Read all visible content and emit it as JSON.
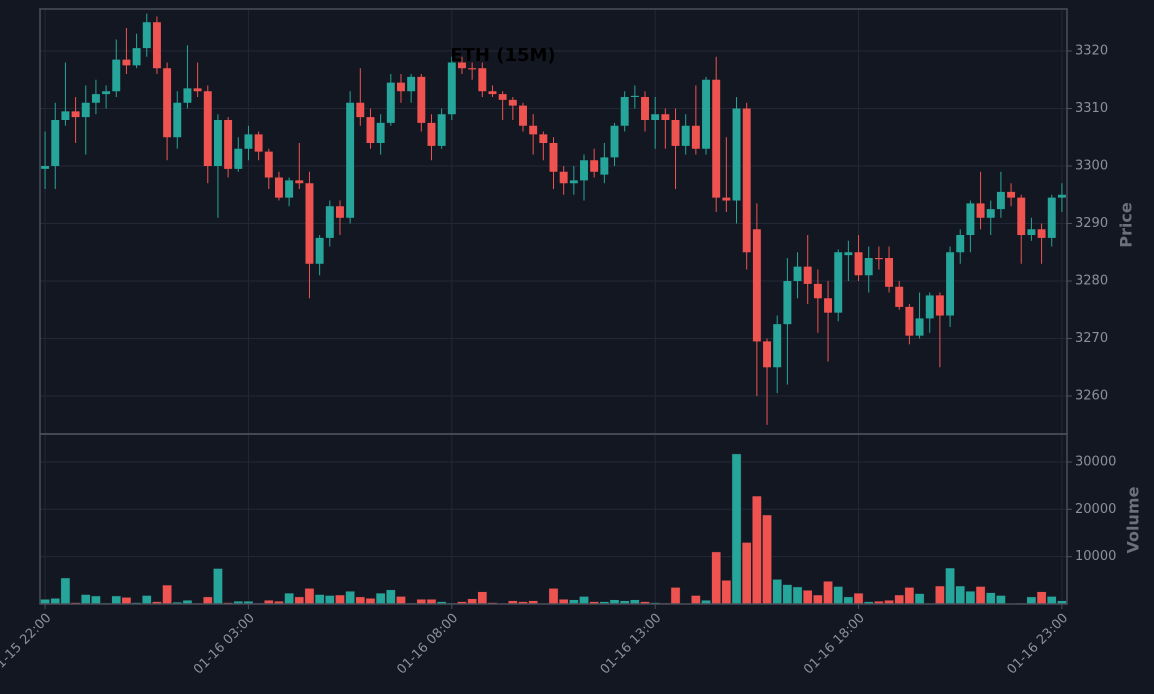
{
  "chart_data": {
    "type": "candlestick",
    "title": "ETH (15M)",
    "ylabel": "Price",
    "volume_label": "Volume",
    "up_color": "#26a69a",
    "down_color": "#ef5350",
    "grid": true,
    "categories": [
      "01-15 22:00",
      null,
      null,
      null,
      null,
      null,
      null,
      null,
      null,
      null,
      null,
      null,
      null,
      null,
      null,
      null,
      null,
      null,
      null,
      null,
      "01-16 03:00",
      null,
      null,
      null,
      null,
      null,
      null,
      null,
      null,
      null,
      null,
      null,
      null,
      null,
      null,
      null,
      null,
      null,
      null,
      null,
      "01-16 08:00",
      null,
      null,
      null,
      null,
      null,
      null,
      null,
      null,
      null,
      null,
      null,
      null,
      null,
      null,
      null,
      null,
      null,
      null,
      null,
      "01-16 13:00",
      null,
      null,
      null,
      null,
      null,
      null,
      null,
      null,
      null,
      null,
      null,
      null,
      null,
      null,
      null,
      null,
      null,
      null,
      null,
      "01-16 18:00",
      null,
      null,
      null,
      null,
      null,
      null,
      null,
      null,
      null,
      null,
      null,
      null,
      null,
      null,
      null,
      null,
      null,
      null,
      null,
      "01-16 23:00"
    ],
    "open": [
      3299.5,
      3300,
      3308,
      3309.5,
      3308.5,
      3311,
      3312.5,
      3313,
      3318.5,
      3317.5,
      3320.5,
      3325,
      3317,
      3305,
      3311,
      3313.5,
      3313,
      3300,
      3308,
      3299.5,
      3303,
      3305.5,
      3302.5,
      3298,
      3294.5,
      3297.5,
      3297,
      3283,
      3287.5,
      3293,
      3291,
      3311,
      3308.5,
      3304,
      3307.5,
      3314.5,
      3313,
      3315.5,
      3307.5,
      3303.5,
      3309,
      3318,
      3317,
      3317,
      3313,
      3312.5,
      3311.5,
      3310.5,
      3307,
      3305.5,
      3304,
      3299,
      3297,
      3297.5,
      3301,
      3298.5,
      3301.5,
      3307,
      3312,
      3312,
      3308,
      3309,
      3308,
      3303.5,
      3307,
      3303,
      3315,
      3294.5,
      3294,
      3310,
      3289,
      3269.5,
      3265,
      3272.5,
      3280,
      3282.5,
      3279.5,
      3277,
      3274.5,
      3284.5,
      3285,
      3281,
      3284,
      3284,
      3279,
      3275.5,
      3270.5,
      3273.5,
      3277.5,
      3274,
      3285,
      3288,
      3293.5,
      3291,
      3292.5,
      3295.5,
      3294.5,
      3288,
      3289,
      3287.5,
      3294.5
    ],
    "high": [
      3306,
      3311,
      3318,
      3312,
      3314,
      3315,
      3314,
      3322,
      3324,
      3323,
      3326.5,
      3326,
      3318,
      3313,
      3321,
      3318,
      3314,
      3309,
      3308.5,
      3305,
      3307,
      3306,
      3303,
      3299,
      3298,
      3304,
      3299,
      3288,
      3294,
      3294,
      3313,
      3317,
      3310,
      3309,
      3316,
      3316,
      3316,
      3316,
      3309,
      3310,
      3319,
      3319,
      3318,
      3318,
      3314,
      3313,
      3312,
      3311,
      3309,
      3306,
      3305,
      3300,
      3300,
      3302,
      3303,
      3304,
      3307.5,
      3313,
      3314,
      3313,
      3312,
      3310,
      3310,
      3309,
      3314,
      3315.5,
      3319,
      3305,
      3312,
      3311,
      3293.5,
      3270,
      3274,
      3284,
      3285,
      3288,
      3282,
      3280,
      3285.5,
      3287,
      3288,
      3286,
      3286,
      3286,
      3280,
      3276,
      3278,
      3278,
      3278,
      3286,
      3289,
      3294,
      3299,
      3294,
      3299,
      3297,
      3295,
      3291,
      3290,
      3295,
      3297
    ],
    "low": [
      3296,
      3296,
      3307,
      3304,
      3302,
      3309,
      3310,
      3312,
      3316,
      3317,
      3319,
      3316,
      3301,
      3303,
      3310,
      3312,
      3297,
      3291,
      3298,
      3299,
      3301,
      3301,
      3296,
      3294,
      3293,
      3296,
      3277,
      3281,
      3286,
      3288,
      3290,
      3307,
      3303,
      3302,
      3307,
      3311,
      3311,
      3306,
      3301,
      3303,
      3308,
      3316,
      3315,
      3312,
      3312,
      3308,
      3308,
      3306,
      3302,
      3301,
      3296,
      3295,
      3295,
      3294,
      3298,
      3297,
      3300,
      3306,
      3310,
      3306,
      3303,
      3303,
      3296,
      3302,
      3302,
      3302,
      3292,
      3292,
      3290,
      3282,
      3260,
      3255,
      3260.5,
      3262,
      3277,
      3276,
      3271,
      3266,
      3273,
      3280,
      3280,
      3278,
      3282,
      3278,
      3275,
      3269,
      3270,
      3271,
      3265,
      3272,
      3283,
      3285,
      3289,
      3288,
      3291,
      3293,
      3283,
      3287,
      3283,
      3286,
      3292
    ],
    "close": [
      3300,
      3308,
      3309.5,
      3308.5,
      3311,
      3312.5,
      3313,
      3318.5,
      3317.5,
      3320.5,
      3325,
      3317,
      3305,
      3311,
      3313.5,
      3313,
      3300,
      3308,
      3299.5,
      3303,
      3305.5,
      3302.5,
      3298,
      3294.5,
      3297.5,
      3297,
      3283,
      3287.5,
      3293,
      3291,
      3311,
      3308.5,
      3304,
      3307.5,
      3314.5,
      3313,
      3315.5,
      3307.5,
      3303.5,
      3309,
      3318,
      3317,
      3316.8,
      3313,
      3312.5,
      3311.5,
      3310.5,
      3307,
      3305.5,
      3304,
      3299,
      3297,
      3297.5,
      3301,
      3299,
      3301.5,
      3307,
      3312,
      3312.2,
      3308,
      3309,
      3308,
      3303.5,
      3307,
      3303,
      3315,
      3294.5,
      3294,
      3310,
      3285,
      3269.5,
      3265,
      3272.5,
      3280,
      3282.5,
      3279.5,
      3277,
      3274.5,
      3285,
      3285,
      3281,
      3284,
      3283.8,
      3279,
      3275.5,
      3270.5,
      3273.5,
      3277.5,
      3274,
      3285,
      3288,
      3293.5,
      3291,
      3292.5,
      3295.5,
      3294.5,
      3288,
      3289,
      3287.5,
      3294.5,
      3295
    ],
    "volume": [
      1000,
      1200,
      5500,
      300,
      2000,
      1700,
      200,
      1700,
      1400,
      300,
      1800,
      500,
      4000,
      400,
      800,
      200,
      1500,
      7500,
      300,
      600,
      600,
      200,
      800,
      600,
      2300,
      1500,
      3300,
      2000,
      1800,
      1900,
      2700,
      1500,
      1200,
      2300,
      3000,
      1600,
      200,
      1000,
      1000,
      500,
      200,
      500,
      1100,
      2600,
      300,
      100,
      700,
      500,
      700,
      100,
      3300,
      1000,
      900,
      1600,
      500,
      500,
      900,
      700,
      900,
      500,
      300,
      200,
      3500,
      100,
      1800,
      800,
      11000,
      5000,
      31700,
      13000,
      22800,
      18800,
      5200,
      4100,
      3600,
      2900,
      1900,
      4800,
      3700,
      1500,
      2300,
      500,
      600,
      800,
      1900,
      3500,
      2200,
      100,
      3800,
      7600,
      3800,
      2700,
      3700,
      2400,
      1800,
      100,
      200,
      1500,
      2600,
      1600,
      700
    ],
    "ylim": [
      3253.4,
      3327.3
    ],
    "yticks": [
      3260,
      3270,
      3280,
      3290,
      3300,
      3310,
      3320
    ],
    "volume_ylim": [
      0,
      35900
    ],
    "volume_yticks": [
      10000,
      20000,
      30000
    ]
  }
}
